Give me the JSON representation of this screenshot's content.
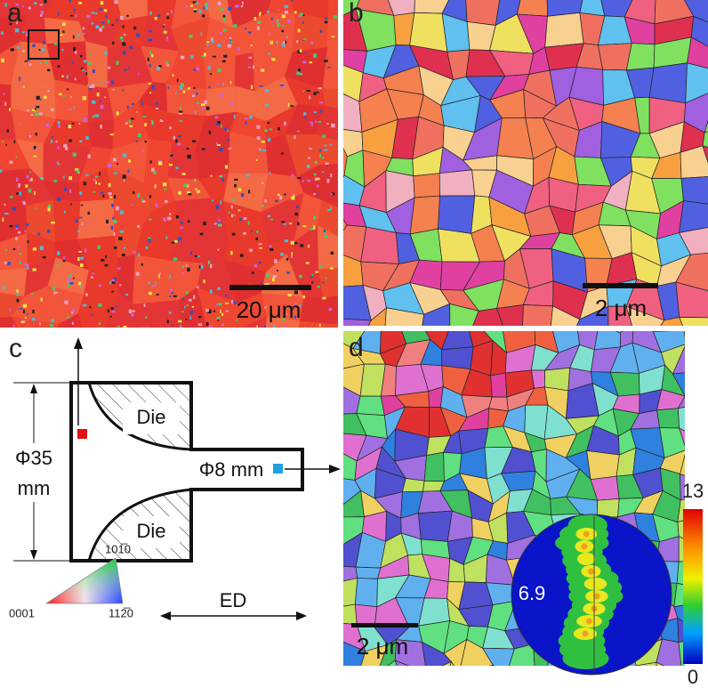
{
  "panels": {
    "a": {
      "label": "a",
      "scale_bar": "20 μm"
    },
    "b": {
      "label": "b",
      "scale_bar": "2 μm"
    },
    "c": {
      "label": "c",
      "die_top": "Die",
      "die_bottom": "Die",
      "billet_diameter": "Φ35",
      "billet_unit": "mm",
      "extrudate_diameter": "Φ8 mm",
      "direction": "ED",
      "ipf_key": {
        "top": "101̅0",
        "left": "0001",
        "right": "112̅0"
      }
    },
    "d": {
      "label": "d",
      "scale_bar": "2 μm",
      "pole_figure_max": "6.9",
      "colorbar_max": "13",
      "colorbar_min": "0"
    }
  }
}
